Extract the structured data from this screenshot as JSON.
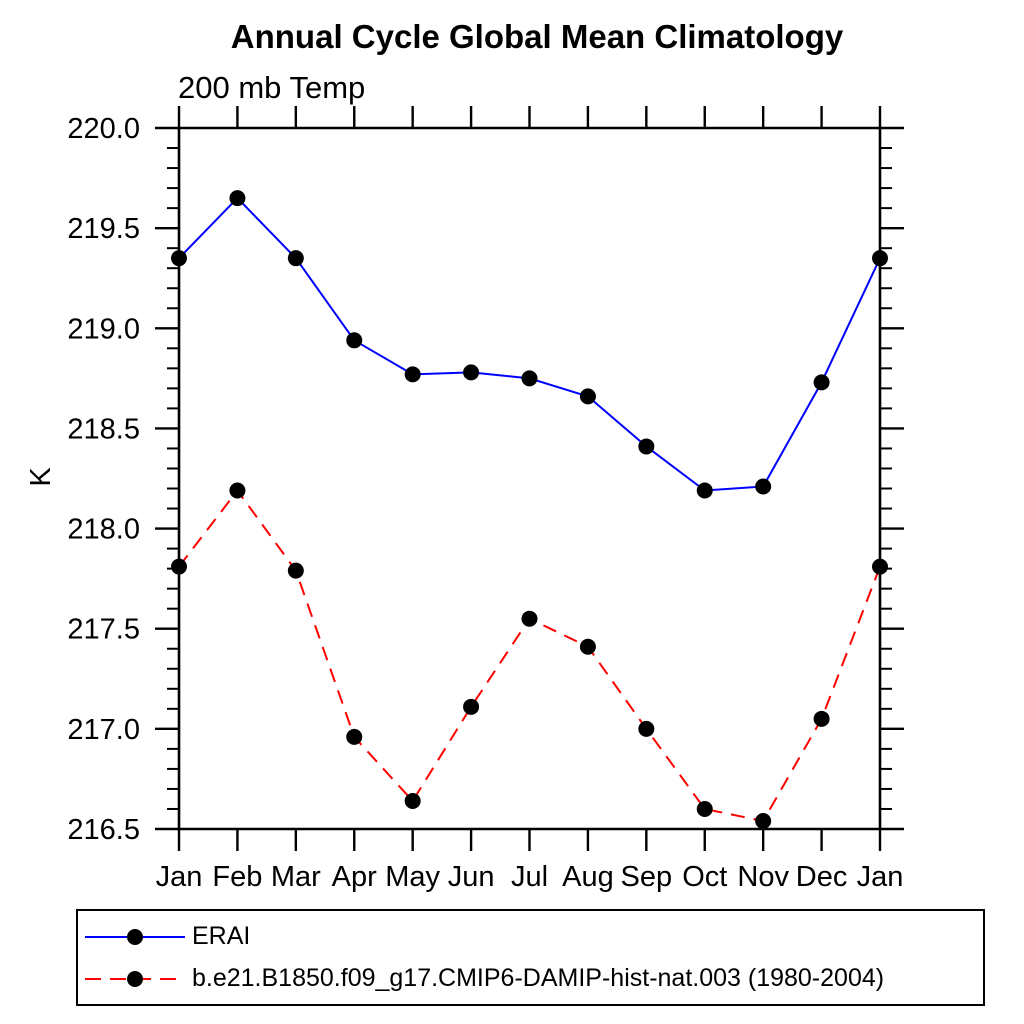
{
  "chart_data": {
    "type": "line",
    "title": "Annual Cycle Global Mean Climatology",
    "subtitle": "200 mb Temp",
    "ylabel": "K",
    "xlabel": "",
    "ylim": [
      216.5,
      220.0
    ],
    "ytick_step": 0.5,
    "yminor_step": 0.1,
    "ytick_labels": [
      "216.5",
      "217.0",
      "217.5",
      "218.0",
      "218.5",
      "219.0",
      "219.5",
      "220.0"
    ],
    "categories": [
      "Jan",
      "Feb",
      "Mar",
      "Apr",
      "May",
      "Jun",
      "Jul",
      "Aug",
      "Sep",
      "Oct",
      "Nov",
      "Dec",
      "Jan"
    ],
    "grid": false,
    "legend_position": "bottom-left",
    "axis_color": "#000000",
    "marker_shape": "filled-circle",
    "series": [
      {
        "name": "ERAI",
        "color": "#0000ff",
        "line_style": "solid",
        "marker_color": "#000000",
        "values": [
          219.35,
          219.65,
          219.35,
          218.94,
          218.77,
          218.78,
          218.75,
          218.66,
          218.41,
          218.19,
          218.21,
          218.73,
          219.35
        ]
      },
      {
        "name": "b.e21.B1850.f09_g17.CMIP6-DAMIP-hist-nat.003 (1980-2004)",
        "color": "#ff0000",
        "line_style": "dashed",
        "marker_color": "#000000",
        "values": [
          217.81,
          218.19,
          217.79,
          216.96,
          216.64,
          217.11,
          217.55,
          217.41,
          217.0,
          216.6,
          216.54,
          217.05,
          217.81
        ]
      }
    ]
  }
}
